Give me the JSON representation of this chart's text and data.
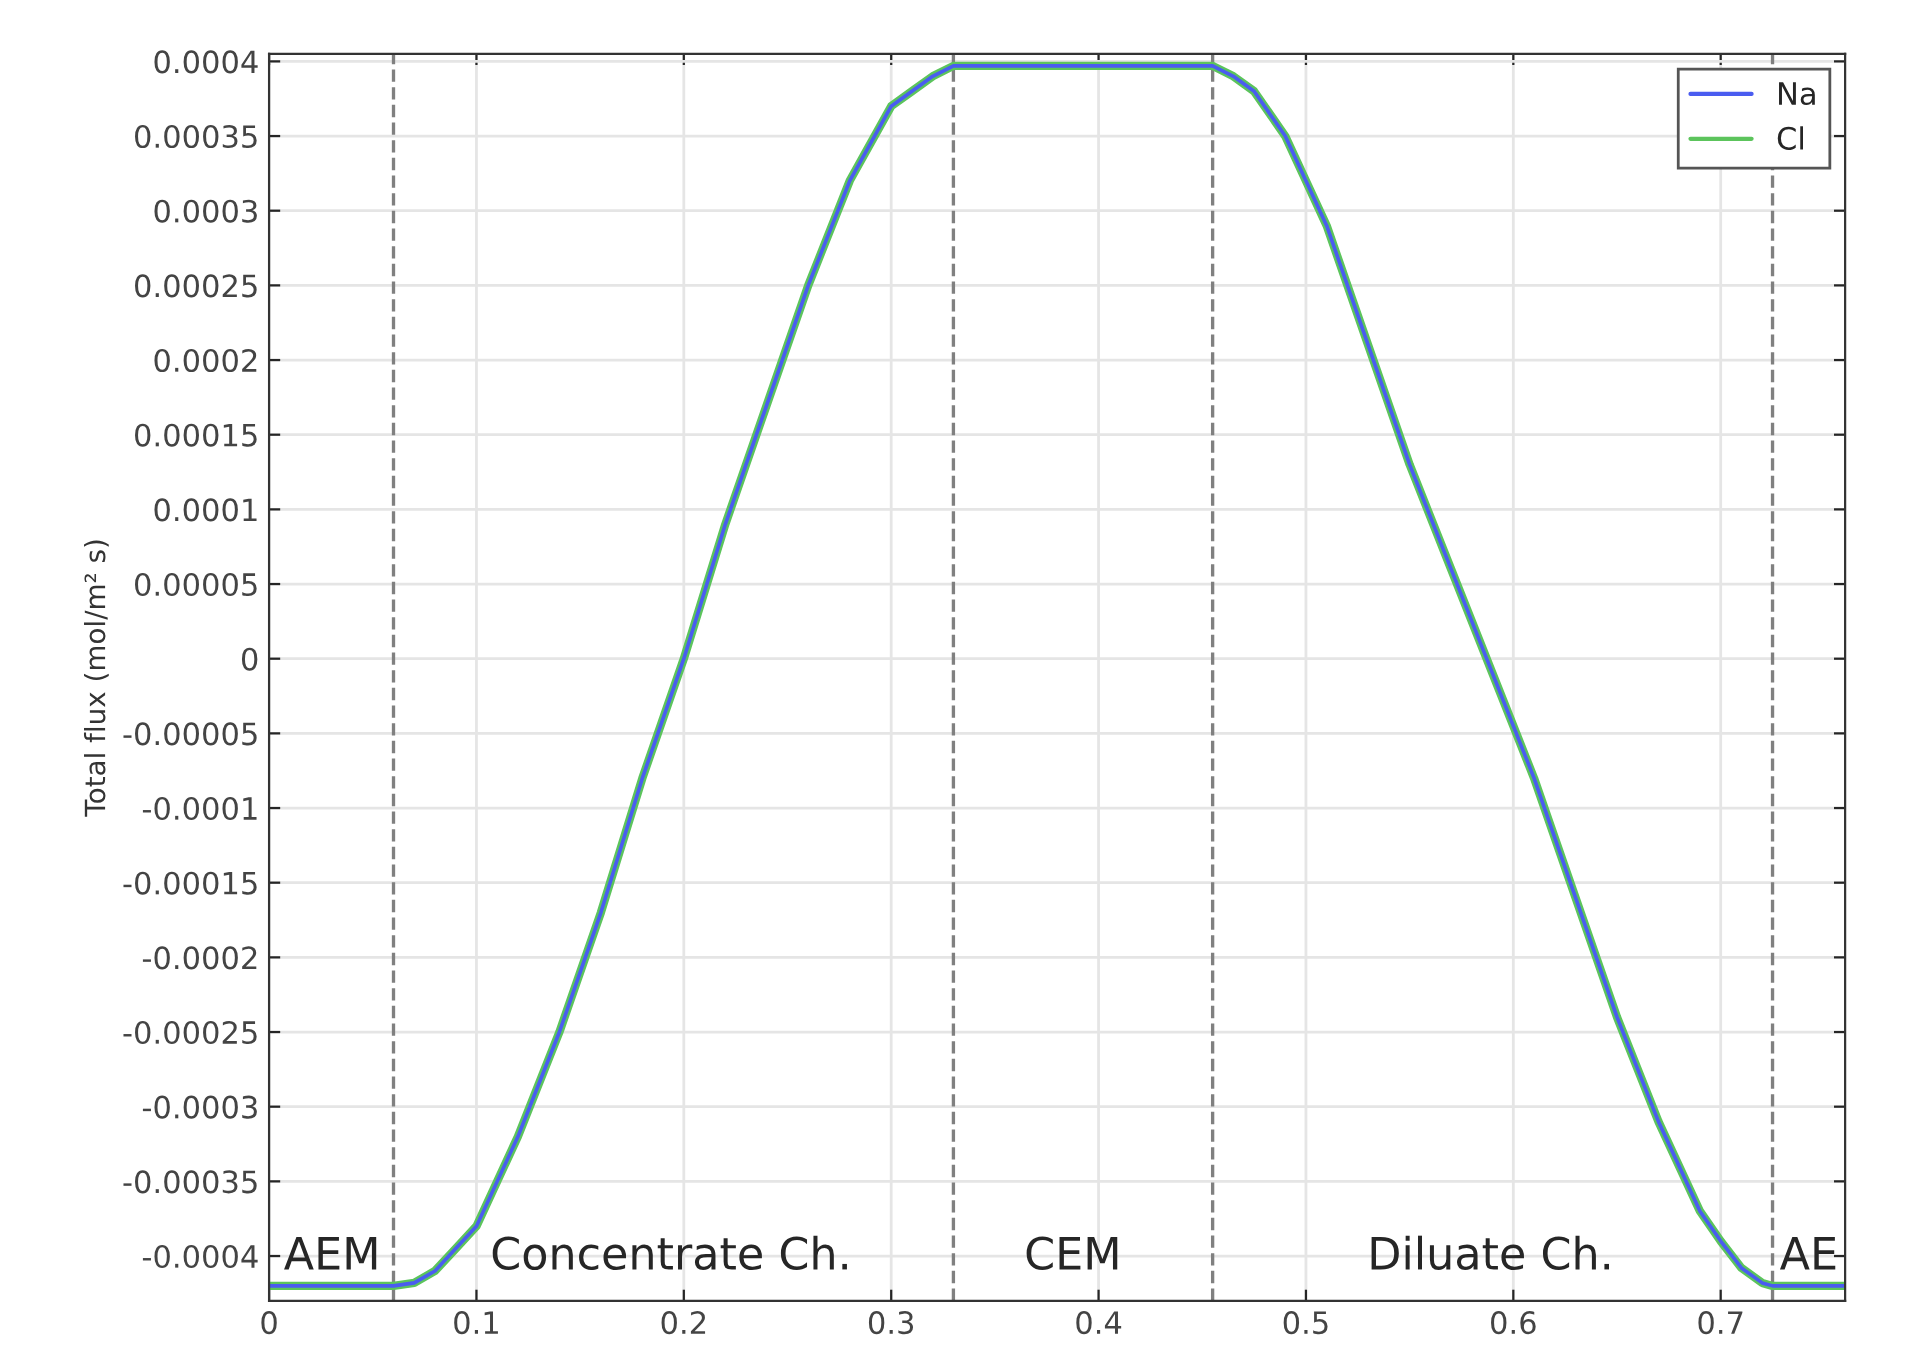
{
  "chart_data": {
    "type": "line",
    "ylabel": "Total flux (mol/m² s)",
    "x": [
      0,
      0.06,
      0.07,
      0.08,
      0.09,
      0.1,
      0.12,
      0.14,
      0.16,
      0.18,
      0.2,
      0.22,
      0.24,
      0.26,
      0.28,
      0.3,
      0.31,
      0.32,
      0.33,
      0.455,
      0.465,
      0.475,
      0.49,
      0.51,
      0.53,
      0.55,
      0.57,
      0.59,
      0.61,
      0.63,
      0.65,
      0.67,
      0.69,
      0.7,
      0.71,
      0.72,
      0.725,
      0.76
    ],
    "series": [
      {
        "name": "Na",
        "color": "#4a5cf0",
        "values": [
          -0.00042,
          -0.00042,
          -0.000418,
          -0.00041,
          -0.000395,
          -0.00038,
          -0.00032,
          -0.00025,
          -0.00017,
          -8e-05,
          0.0,
          9e-05,
          0.00017,
          0.00025,
          0.00032,
          0.00037,
          0.00038,
          0.00039,
          0.000397,
          0.000397,
          0.00039,
          0.00038,
          0.00035,
          0.00029,
          0.00021,
          0.00013,
          6e-05,
          -1e-05,
          -8e-05,
          -0.00016,
          -0.00024,
          -0.00031,
          -0.00037,
          -0.00039,
          -0.000408,
          -0.000418,
          -0.00042,
          -0.00042
        ]
      },
      {
        "name": "Cl",
        "color": "#5cc45c",
        "values": [
          -0.00042,
          -0.00042,
          -0.000418,
          -0.00041,
          -0.000395,
          -0.00038,
          -0.00032,
          -0.00025,
          -0.00017,
          -8e-05,
          0.0,
          9e-05,
          0.00017,
          0.00025,
          0.00032,
          0.00037,
          0.00038,
          0.00039,
          0.000397,
          0.000397,
          0.00039,
          0.00038,
          0.00035,
          0.00029,
          0.00021,
          0.00013,
          6e-05,
          -1e-05,
          -8e-05,
          -0.00016,
          -0.00024,
          -0.00031,
          -0.00037,
          -0.00039,
          -0.000408,
          -0.000418,
          -0.00042,
          -0.00042
        ]
      }
    ],
    "xlim": [
      0,
      0.76
    ],
    "ylim": [
      -0.00043,
      0.000405
    ],
    "xticks": [
      0,
      0.1,
      0.2,
      0.3,
      0.4,
      0.5,
      0.6,
      0.7
    ],
    "yticks": [
      {
        "value": -0.0004,
        "label": "-0.0004"
      },
      {
        "value": -0.00035,
        "label": "-0.00035"
      },
      {
        "value": -0.0003,
        "label": "-0.0003"
      },
      {
        "value": -0.00025,
        "label": "-0.00025"
      },
      {
        "value": -0.0002,
        "label": "-0.0002"
      },
      {
        "value": -0.00015,
        "label": "-0.00015"
      },
      {
        "value": -0.0001,
        "label": "-0.0001"
      },
      {
        "value": -5e-05,
        "label": "-0.00005"
      },
      {
        "value": 0,
        "label": "0"
      },
      {
        "value": 5e-05,
        "label": "0.00005"
      },
      {
        "value": 0.0001,
        "label": "0.0001"
      },
      {
        "value": 0.00015,
        "label": "0.00015"
      },
      {
        "value": 0.0002,
        "label": "0.0002"
      },
      {
        "value": 0.00025,
        "label": "0.00025"
      },
      {
        "value": 0.0003,
        "label": "0.0003"
      },
      {
        "value": 0.00035,
        "label": "0.00035"
      },
      {
        "value": 0.0004,
        "label": "0.0004"
      }
    ],
    "ref_lines": [
      {
        "axis": "x",
        "value": 0.06,
        "color": "#808080",
        "line_style": "dashed"
      },
      {
        "axis": "x",
        "value": 0.33,
        "color": "#808080",
        "line_style": "dashed"
      },
      {
        "axis": "x",
        "value": 0.455,
        "color": "#808080",
        "line_style": "dashed"
      },
      {
        "axis": "x",
        "value": 0.725,
        "color": "#808080",
        "line_style": "dashed"
      }
    ],
    "annotations": [
      "AEM",
      "Concentrate Ch.",
      "CEM",
      "Diluate Ch.",
      "AE"
    ],
    "grid": true,
    "legend": "top right",
    "marker": "none",
    "line_style": "solid"
  }
}
